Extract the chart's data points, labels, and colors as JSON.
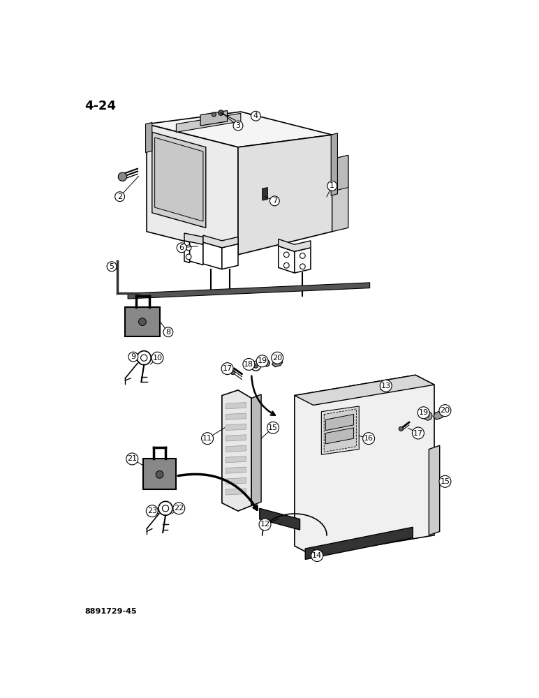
{
  "title": "4-24",
  "figure_code": "8891729-45",
  "bg": "#ffffff",
  "lc": "#000000",
  "figsize": [
    7.72,
    10.0
  ],
  "dpi": 100
}
